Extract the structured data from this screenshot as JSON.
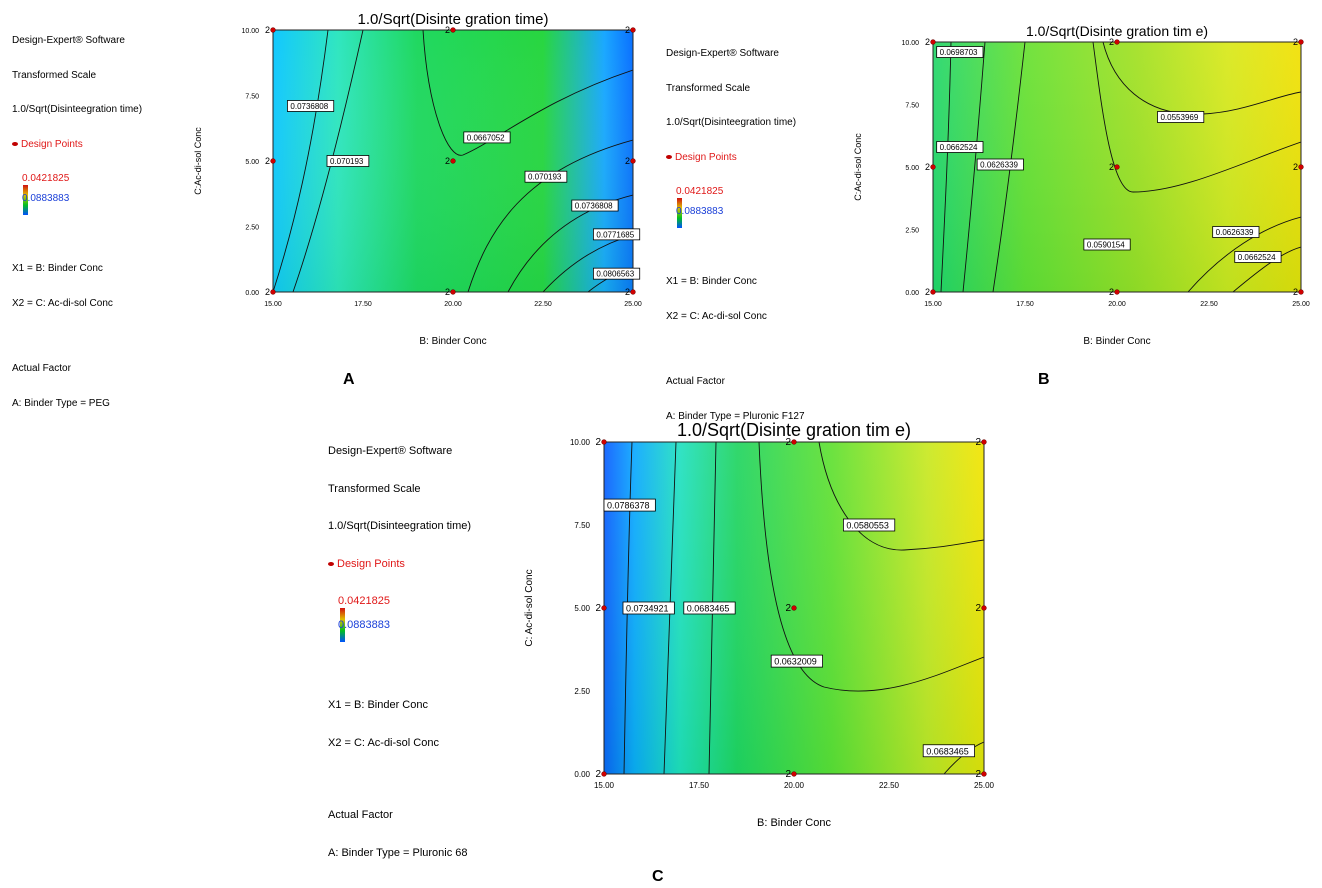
{
  "info": {
    "software": "Design-Expert® Software",
    "scale": "Transformed Scale",
    "response": "1.0/Sqrt(Disinteegration time)",
    "design_points": "Design Points",
    "high": "0.0421825",
    "low": "0.0883883",
    "x1": "X1 = B: Binder Conc",
    "x2": "X2 = C: Ac-di-sol Conc",
    "actual_factor": "Actual Factor"
  },
  "chart_data": [
    {
      "id": "A",
      "type": "contour",
      "title": "1.0/Sqrt(Disinte gration time)",
      "xlabel": "B: Binder Conc",
      "ylabel": "C:Ac-di-sol Conc",
      "binder_type": "A: Binder Type = PEG",
      "xlim": [
        15,
        25
      ],
      "ylim": [
        0,
        10
      ],
      "xticks": [
        "15.00",
        "17.50",
        "20.00",
        "22.50",
        "25.00"
      ],
      "yticks": [
        "0.00",
        "2.50",
        "5.00",
        "7.50",
        "10.00"
      ],
      "design_points": [
        {
          "x": 15,
          "y": 0,
          "n": "2"
        },
        {
          "x": 15,
          "y": 5,
          "n": "2"
        },
        {
          "x": 15,
          "y": 10,
          "n": "2"
        },
        {
          "x": 20,
          "y": 0,
          "n": "2"
        },
        {
          "x": 20,
          "y": 5,
          "n": "2"
        },
        {
          "x": 20,
          "y": 10,
          "n": "2"
        },
        {
          "x": 25,
          "y": 0,
          "n": "2"
        },
        {
          "x": 25,
          "y": 5,
          "n": "2"
        },
        {
          "x": 25,
          "y": 10,
          "n": "2"
        }
      ],
      "contour_labels": [
        {
          "x": 15.4,
          "y": 7.1,
          "text": "0.0736808"
        },
        {
          "x": 16.5,
          "y": 5.0,
          "text": "0.070193"
        },
        {
          "x": 20.3,
          "y": 5.9,
          "text": "0.0667052"
        },
        {
          "x": 22.0,
          "y": 4.4,
          "text": "0.070193"
        },
        {
          "x": 23.3,
          "y": 3.3,
          "text": "0.0736808"
        },
        {
          "x": 23.9,
          "y": 2.2,
          "text": "0.0771685"
        },
        {
          "x": 23.9,
          "y": 0.7,
          "text": "0.0806563"
        }
      ]
    },
    {
      "id": "B",
      "type": "contour",
      "title": "1.0/Sqrt(Disinte gration tim e)",
      "xlabel": "B: Binder Conc",
      "ylabel": "C:Ac-di-sol Conc",
      "binder_type": "A: Binder Type = Pluronic F127",
      "xlim": [
        15,
        25
      ],
      "ylim": [
        0,
        10
      ],
      "xticks": [
        "15.00",
        "17.50",
        "20.00",
        "22.50",
        "25.00"
      ],
      "yticks": [
        "0.00",
        "2.50",
        "5.00",
        "7.50",
        "10.00"
      ],
      "design_points": [
        {
          "x": 15,
          "y": 0,
          "n": "2"
        },
        {
          "x": 15,
          "y": 5,
          "n": "2"
        },
        {
          "x": 15,
          "y": 10,
          "n": "2"
        },
        {
          "x": 20,
          "y": 0,
          "n": "2"
        },
        {
          "x": 20,
          "y": 5,
          "n": "2"
        },
        {
          "x": 20,
          "y": 10,
          "n": "2"
        },
        {
          "x": 25,
          "y": 0,
          "n": "2"
        },
        {
          "x": 25,
          "y": 5,
          "n": "2"
        },
        {
          "x": 25,
          "y": 10,
          "n": "2"
        }
      ],
      "contour_labels": [
        {
          "x": 15.1,
          "y": 9.6,
          "text": "0.0698703"
        },
        {
          "x": 15.1,
          "y": 5.8,
          "text": "0.0662524"
        },
        {
          "x": 16.2,
          "y": 5.1,
          "text": "0.0626339"
        },
        {
          "x": 21.1,
          "y": 7.0,
          "text": "0.0553969"
        },
        {
          "x": 19.1,
          "y": 1.9,
          "text": "0.0590154"
        },
        {
          "x": 22.6,
          "y": 2.4,
          "text": "0.0626339"
        },
        {
          "x": 23.2,
          "y": 1.4,
          "text": "0.0662524"
        }
      ]
    },
    {
      "id": "C",
      "type": "contour",
      "title": "1.0/Sqrt(Disinte gration tim e)",
      "xlabel": "B: Binder Conc",
      "ylabel": "C: Ac-di-sol Conc",
      "binder_type": "A: Binder Type = Pluronic 68",
      "xlim": [
        15,
        25
      ],
      "ylim": [
        0,
        10
      ],
      "xticks": [
        "15.00",
        "17.50",
        "20.00",
        "22.50",
        "25.00"
      ],
      "yticks": [
        "0.00",
        "2.50",
        "5.00",
        "7.50",
        "10.00"
      ],
      "design_points": [
        {
          "x": 15,
          "y": 0,
          "n": "2"
        },
        {
          "x": 15,
          "y": 5,
          "n": "2"
        },
        {
          "x": 15,
          "y": 10,
          "n": "2"
        },
        {
          "x": 20,
          "y": 0,
          "n": "2"
        },
        {
          "x": 20,
          "y": 5,
          "n": "2"
        },
        {
          "x": 20,
          "y": 10,
          "n": "2"
        },
        {
          "x": 25,
          "y": 0,
          "n": "2"
        },
        {
          "x": 25,
          "y": 5,
          "n": "2"
        },
        {
          "x": 25,
          "y": 10,
          "n": "2"
        }
      ],
      "contour_labels": [
        {
          "x": 15.0,
          "y": 8.1,
          "text": "0.0786378"
        },
        {
          "x": 15.5,
          "y": 5.0,
          "text": "0.0734921"
        },
        {
          "x": 17.1,
          "y": 5.0,
          "text": "0.0683465"
        },
        {
          "x": 21.3,
          "y": 7.5,
          "text": "0.0580553"
        },
        {
          "x": 19.4,
          "y": 3.4,
          "text": "0.0632009"
        },
        {
          "x": 23.4,
          "y": 0.7,
          "text": "0.0683465"
        }
      ]
    }
  ]
}
